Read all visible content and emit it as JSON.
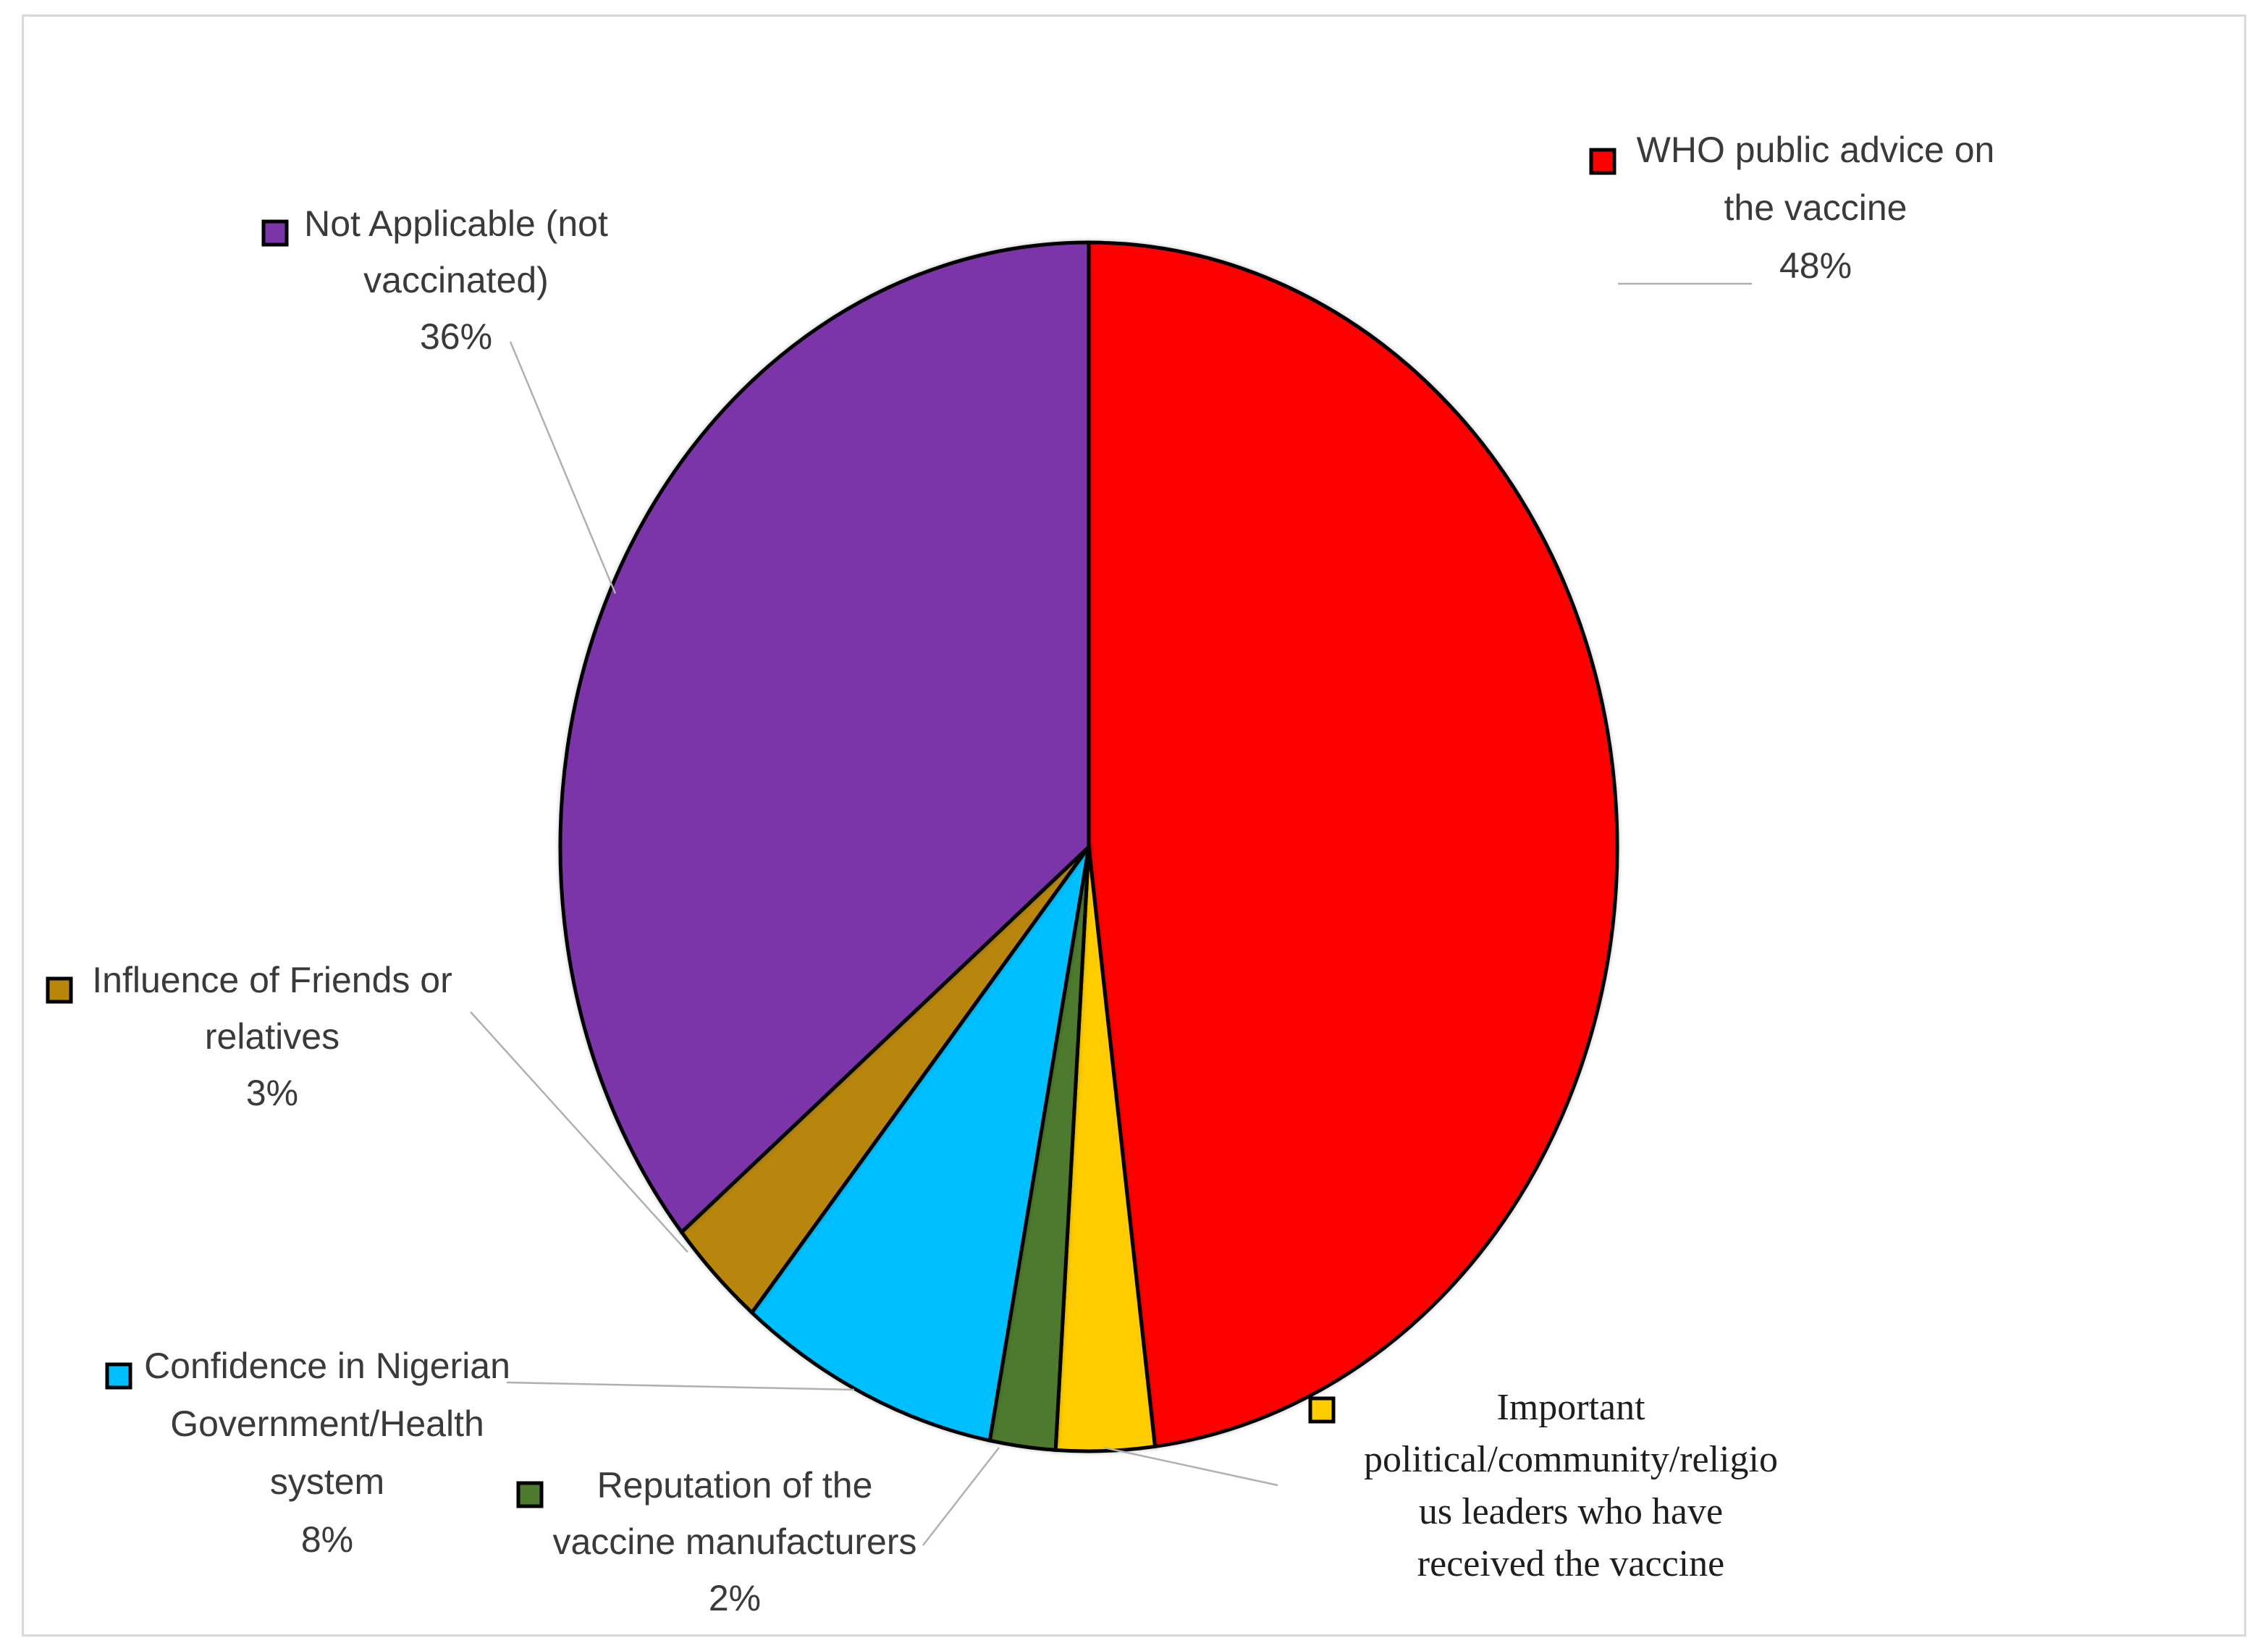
{
  "chart_data": {
    "type": "pie",
    "title": "",
    "start_angle_deg": 0,
    "direction": "clockwise",
    "slices": [
      {
        "label": "WHO public advice on the vaccine",
        "value": 48,
        "pct_label": "48%",
        "color": "#ff0000"
      },
      {
        "label": "Important political/community/religious leaders who have received the vaccine",
        "value": 3,
        "pct_label": "",
        "color": "#ffcc00"
      },
      {
        "label": "Reputation of the vaccine manufacturers",
        "value": 2,
        "pct_label": "2%",
        "color": "#4e7a2e"
      },
      {
        "label": "Confidence in Nigerian Government/Health system",
        "value": 8,
        "pct_label": "8%",
        "color": "#00bfff"
      },
      {
        "label": "Influence of Friends or relatives",
        "value": 3,
        "pct_label": "3%",
        "color": "#b8860b"
      },
      {
        "label": "Not Applicable (not vaccinated)",
        "value": 36,
        "pct_label": "36%",
        "color": "#7b35a8"
      }
    ],
    "label_lines": [
      [
        "WHO public advice on",
        "the vaccine",
        "48%"
      ],
      [
        "Important",
        "political/community/religio",
        "us leaders who have",
        "received the vaccine"
      ],
      [
        "Reputation of the",
        "vaccine manufacturers",
        "2%"
      ],
      [
        "Confidence in Nigerian",
        "Government/Health",
        "system",
        "8%"
      ],
      [
        "Influence of Friends or",
        "relatives",
        "3%"
      ],
      [
        "Not Applicable (not",
        "vaccinated)",
        "36%"
      ]
    ]
  }
}
